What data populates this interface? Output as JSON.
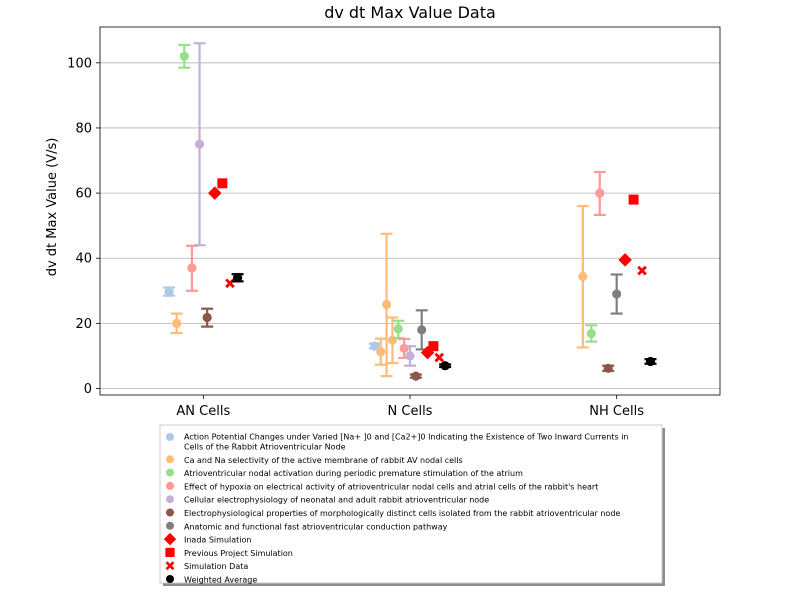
{
  "chart_data": {
    "type": "scatter",
    "title": "dv dt Max Value Data",
    "xlabel": "",
    "ylabel": "dv dt Max Value (V/s)",
    "categories": [
      "AN Cells",
      "N Cells",
      "NH Cells"
    ],
    "ylim": [
      -2,
      111
    ],
    "yticks": [
      0,
      20,
      40,
      60,
      80,
      100
    ],
    "grid": "y",
    "legend_position": "bottom",
    "series": [
      {
        "name": "Action Potential Changes under Varied [Na+ ]0 and [Ca2+]0 Indicating the Existence of Two Inward Currents in Cells of the Rabbit Atrioventricular Node",
        "marker": "circle",
        "color": "#aec7e8",
        "errorbars": true,
        "points": [
          {
            "category": "AN Cells",
            "y": 29.7,
            "low": 28.5,
            "high": 31.0
          },
          {
            "category": "N Cells",
            "y": 13.0,
            "low": 12.3,
            "high": 13.8
          }
        ]
      },
      {
        "name": "Ca and Na selectivity of the active membrane of rabbit AV nodal cells",
        "marker": "circle",
        "color": "#ffbb78",
        "errorbars": true,
        "points": [
          {
            "category": "AN Cells",
            "y": 20.0,
            "low": 17.0,
            "high": 23.0
          },
          {
            "category": "N Cells",
            "y": 11.3,
            "low": 7.3,
            "high": 15.3
          },
          {
            "category": "N Cells",
            "y": 25.8,
            "low": 3.8,
            "high": 47.5
          },
          {
            "category": "N Cells",
            "y": 14.8,
            "low": 7.8,
            "high": 21.8
          },
          {
            "category": "NH Cells",
            "y": 34.4,
            "low": 12.6,
            "high": 56.0
          }
        ]
      },
      {
        "name": "Atrioventricular nodal activation during periodic premature stimulation of the atrium",
        "marker": "circle",
        "color": "#98df8a",
        "errorbars": true,
        "points": [
          {
            "category": "AN Cells",
            "y": 102.0,
            "low": 98.5,
            "high": 105.5
          },
          {
            "category": "N Cells",
            "y": 18.3,
            "low": 15.5,
            "high": 20.8
          },
          {
            "category": "NH Cells",
            "y": 16.9,
            "low": 14.4,
            "high": 19.4
          }
        ]
      },
      {
        "name": "Effect of hypoxia on electrical activity of atrioventricular nodal cells and atrial cells of the rabbit's heart",
        "marker": "circle",
        "color": "#ff9896",
        "errorbars": true,
        "points": [
          {
            "category": "AN Cells",
            "y": 37.0,
            "low": 30.0,
            "high": 43.8
          },
          {
            "category": "N Cells",
            "y": 12.3,
            "low": 9.4,
            "high": 15.2
          },
          {
            "category": "NH Cells",
            "y": 60.0,
            "low": 53.3,
            "high": 66.5
          }
        ]
      },
      {
        "name": "Cellular electrophysiology of neonatal and adult rabbit atrioventricular node",
        "marker": "circle",
        "color": "#c5b0d5",
        "errorbars": true,
        "points": [
          {
            "category": "AN Cells",
            "y": 75.0,
            "low": 44.0,
            "high": 106.0
          },
          {
            "category": "N Cells",
            "y": 10.0,
            "low": 7.0,
            "high": 13.0
          }
        ]
      },
      {
        "name": "Electrophysiological properties of morphologically distinct cells isolated from the rabbit atrioventricular node",
        "marker": "circle",
        "color": "#8c564b",
        "errorbars": true,
        "points": [
          {
            "category": "AN Cells",
            "y": 21.8,
            "low": 19.0,
            "high": 24.5
          },
          {
            "category": "N Cells",
            "y": 3.8,
            "low": 3.3,
            "high": 4.3
          },
          {
            "category": "NH Cells",
            "y": 6.2,
            "low": 5.4,
            "high": 7.0
          }
        ]
      },
      {
        "name": "Anatomic and functional fast atrioventricular conduction pathway",
        "marker": "circle",
        "color": "#7f7f7f",
        "errorbars": true,
        "points": [
          {
            "category": "N Cells",
            "y": 18.0,
            "low": 12.0,
            "high": 24.0
          },
          {
            "category": "NH Cells",
            "y": 29.0,
            "low": 23.0,
            "high": 35.0
          }
        ]
      },
      {
        "name": "Inada Simulation",
        "marker": "diamond",
        "color": "#ff0000",
        "errorbars": false,
        "points": [
          {
            "category": "AN Cells",
            "y": 60.0
          },
          {
            "category": "N Cells",
            "y": 11.0
          },
          {
            "category": "NH Cells",
            "y": 39.5
          }
        ]
      },
      {
        "name": "Previous Project Simulation",
        "marker": "square",
        "color": "#ff0000",
        "errorbars": false,
        "points": [
          {
            "category": "AN Cells",
            "y": 63.0
          },
          {
            "category": "N Cells",
            "y": 13.0
          },
          {
            "category": "NH Cells",
            "y": 58.0
          }
        ]
      },
      {
        "name": "Simulation Data",
        "marker": "x",
        "color": "#ff0000",
        "errorbars": false,
        "points": [
          {
            "category": "AN Cells",
            "y": 32.3
          },
          {
            "category": "N Cells",
            "y": 9.5
          },
          {
            "category": "NH Cells",
            "y": 36.2
          }
        ]
      },
      {
        "name": "Weighted Average",
        "marker": "circle",
        "color": "#000000",
        "errorbars": true,
        "points": [
          {
            "category": "AN Cells",
            "y": 34.0,
            "low": 32.9,
            "high": 35.1
          },
          {
            "category": "N Cells",
            "y": 7.0,
            "low": 6.6,
            "high": 7.4
          },
          {
            "category": "NH Cells",
            "y": 8.3,
            "low": 7.6,
            "high": 9.0
          }
        ]
      }
    ]
  }
}
